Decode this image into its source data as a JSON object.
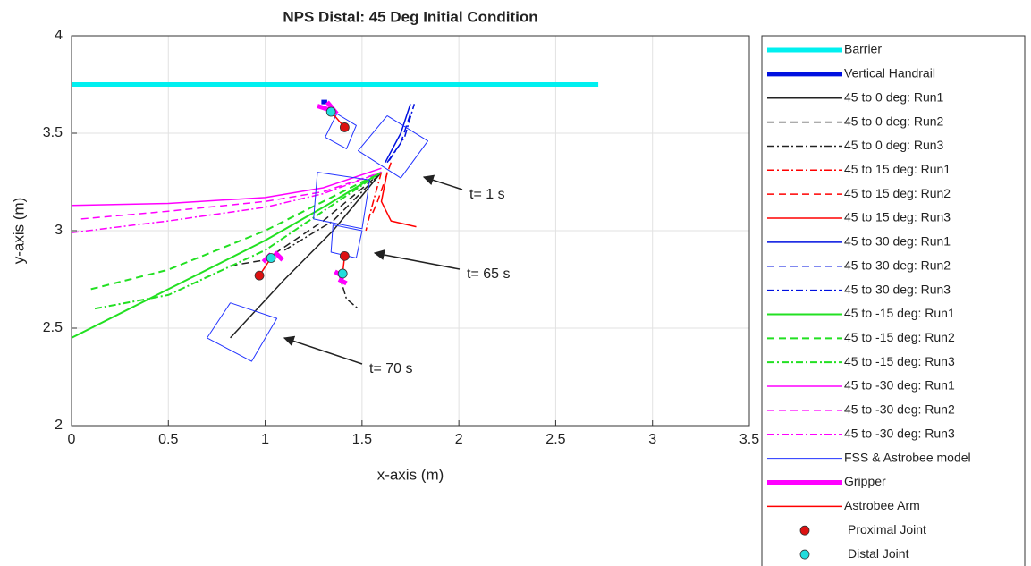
{
  "chart_data": {
    "type": "line",
    "title": "NPS Distal: 45 Deg Initial Condition",
    "x_label": "x-axis (m)",
    "y_label": "y-axis (m)",
    "xlim": [
      0,
      3.5
    ],
    "ylim": [
      2,
      4
    ],
    "xticks": [
      0,
      0.5,
      1,
      1.5,
      2,
      2.5,
      3,
      3.5
    ],
    "yticks": [
      2,
      2.5,
      3,
      3.5,
      4
    ],
    "grid": true,
    "annotations": [
      "t= 1 s",
      "t= 65 s",
      "t= 70 s"
    ],
    "series": [
      {
        "name": "Barrier",
        "color": "#00f0f0",
        "dash": "solid",
        "width": 5,
        "x": [
          0,
          2.72
        ],
        "values": [
          3.75,
          3.75
        ]
      },
      {
        "name": "Vertical Handrail",
        "color": "#0010e0",
        "dash": "solid",
        "width": 5,
        "x": [
          1.29,
          1.32
        ],
        "values": [
          3.66,
          3.66
        ]
      },
      {
        "name": "45 to 0 deg: Run1",
        "color": "#222222",
        "dash": "solid",
        "width": 1.5,
        "x": [
          0.82,
          1.1,
          1.35,
          1.6
        ],
        "values": [
          2.45,
          2.75,
          3.0,
          3.3
        ]
      },
      {
        "name": "45 to 0 deg: Run2",
        "color": "#222222",
        "dash": "dashed",
        "width": 1.5,
        "x": [
          0.82,
          1.0,
          1.3,
          1.6
        ],
        "values": [
          2.82,
          2.85,
          3.05,
          3.3
        ]
      },
      {
        "name": "45 to 0 deg: Run3",
        "color": "#222222",
        "dash": "dashdot",
        "width": 1.5,
        "x": [
          1.1,
          1.35,
          1.6,
          null,
          1.38,
          1.42,
          1.48
        ],
        "values": [
          2.9,
          3.05,
          3.3,
          null,
          2.78,
          2.65,
          2.6
        ]
      },
      {
        "name": "45 to 15 deg: Run1",
        "color": "#ff0000",
        "dash": "dashdot",
        "width": 1.5,
        "x": [
          1.6,
          1.55,
          1.52
        ],
        "values": [
          3.3,
          3.12,
          3.0
        ]
      },
      {
        "name": "45 to 15 deg: Run2",
        "color": "#ff0000",
        "dash": "dashed",
        "width": 1.5,
        "x": [
          1.65,
          1.58,
          1.55
        ],
        "values": [
          3.35,
          3.15,
          3.08
        ]
      },
      {
        "name": "45 to 15 deg: Run3",
        "color": "#ff0000",
        "dash": "solid",
        "width": 1.5,
        "x": [
          1.63,
          1.6,
          1.65,
          1.78
        ],
        "values": [
          3.3,
          3.15,
          3.05,
          3.02
        ]
      },
      {
        "name": "45 to 30 deg: Run1",
        "color": "#0010e0",
        "dash": "solid",
        "width": 1.5,
        "x": [
          1.62,
          1.7,
          1.75
        ],
        "values": [
          3.35,
          3.5,
          3.65
        ]
      },
      {
        "name": "45 to 30 deg: Run2",
        "color": "#0010e0",
        "dash": "dashed",
        "width": 1.5,
        "x": [
          1.63,
          1.7,
          1.75
        ],
        "values": [
          3.35,
          3.45,
          3.6
        ]
      },
      {
        "name": "45 to 30 deg: Run3",
        "color": "#0010e0",
        "dash": "dashdot",
        "width": 1.5,
        "x": [
          1.64,
          1.72,
          1.77
        ],
        "values": [
          3.36,
          3.48,
          3.65
        ]
      },
      {
        "name": "45 to -15 deg: Run1",
        "color": "#22e022",
        "dash": "solid",
        "width": 2,
        "x": [
          0,
          0.5,
          1,
          1.3,
          1.6
        ],
        "values": [
          2.45,
          2.7,
          2.95,
          3.12,
          3.3
        ]
      },
      {
        "name": "45 to -15 deg: Run2",
        "color": "#22e022",
        "dash": "dashed",
        "width": 2,
        "x": [
          0.1,
          0.5,
          1,
          1.3,
          1.6
        ],
        "values": [
          2.7,
          2.8,
          3.0,
          3.15,
          3.3
        ]
      },
      {
        "name": "45 to -15 deg: Run3",
        "color": "#22e022",
        "dash": "dashdot",
        "width": 2,
        "x": [
          0.12,
          0.5,
          1,
          1.3,
          1.6
        ],
        "values": [
          2.6,
          2.67,
          2.9,
          3.1,
          3.3
        ]
      },
      {
        "name": "45 to -30 deg: Run1",
        "color": "#ff00ff",
        "dash": "solid",
        "width": 1.5,
        "x": [
          0,
          0.5,
          1,
          1.3,
          1.6
        ],
        "values": [
          3.13,
          3.14,
          3.17,
          3.22,
          3.32
        ]
      },
      {
        "name": "45 to -30 deg: Run2",
        "color": "#ff00ff",
        "dash": "dashed",
        "width": 1.5,
        "x": [
          0.05,
          0.5,
          1,
          1.3,
          1.6
        ],
        "values": [
          3.06,
          3.1,
          3.15,
          3.2,
          3.3
        ]
      },
      {
        "name": "45 to -30 deg: Run3",
        "color": "#ff00ff",
        "dash": "dashdot",
        "width": 1.5,
        "x": [
          0,
          0.5,
          1,
          1.3,
          1.6
        ],
        "values": [
          2.99,
          3.05,
          3.12,
          3.19,
          3.3
        ]
      },
      {
        "name": "FSS & Astrobee model",
        "color": "#2233ff",
        "dash": "solid",
        "width": 1,
        "x": [
          1.37,
          1.47,
          1.42,
          1.31,
          1.37,
          null,
          1.63,
          1.84,
          1.7,
          1.48,
          1.63,
          null,
          1.27,
          1.54,
          1.5,
          1.25,
          1.27,
          null,
          1.35,
          1.5,
          1.47,
          1.34,
          1.35,
          null,
          0.82,
          1.06,
          0.93,
          0.7,
          0.82
        ],
        "values": [
          3.6,
          3.54,
          3.42,
          3.48,
          3.6,
          null,
          3.59,
          3.46,
          3.27,
          3.41,
          3.59,
          null,
          3.3,
          3.26,
          3.01,
          3.06,
          3.3,
          null,
          3.03,
          3.0,
          2.86,
          2.89,
          3.03,
          null,
          2.63,
          2.55,
          2.33,
          2.45,
          2.63
        ]
      },
      {
        "name": "Gripper",
        "color": "#ff00ff",
        "dash": "solid",
        "width": 5,
        "x": [
          1.27,
          1.33,
          null,
          1.32,
          1.37,
          null,
          0.99,
          1.03,
          null,
          1.05,
          1.09,
          null,
          1.36,
          1.41,
          null,
          1.38,
          1.42
        ],
        "values": [
          3.64,
          3.62,
          null,
          3.66,
          3.6,
          null,
          2.84,
          2.88,
          null,
          2.89,
          2.85,
          null,
          2.79,
          2.76,
          null,
          2.75,
          2.73
        ]
      },
      {
        "name": "Astrobee Arm",
        "color": "#ff0000",
        "dash": "solid",
        "width": 1.5,
        "x": [
          1.34,
          1.41,
          null,
          1.03,
          0.97,
          null,
          1.4,
          1.41
        ],
        "values": [
          3.61,
          3.53,
          null,
          2.86,
          2.77,
          null,
          2.78,
          2.87
        ]
      },
      {
        "name": "Proximal Joint",
        "color": "#dd1111",
        "marker": true,
        "x": [
          1.41,
          0.97,
          1.41
        ],
        "values": [
          3.53,
          2.77,
          2.87
        ]
      },
      {
        "name": "Distal Joint",
        "color": "#22dddd",
        "marker": true,
        "x": [
          1.34,
          1.03,
          1.4
        ],
        "values": [
          3.61,
          2.86,
          2.78
        ]
      }
    ]
  }
}
